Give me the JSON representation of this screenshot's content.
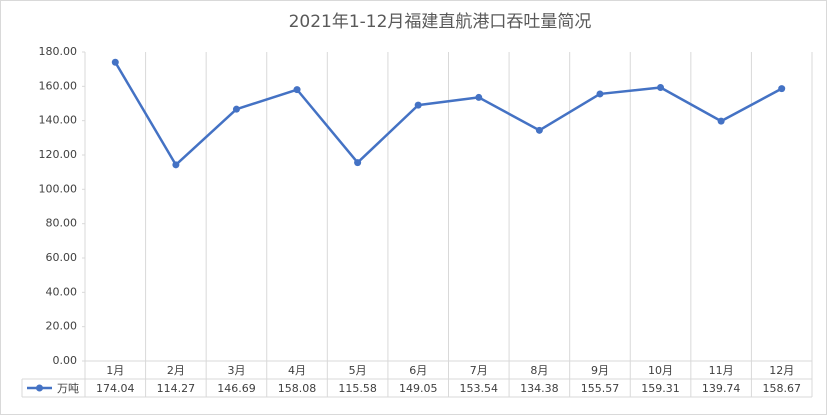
{
  "chart_data": {
    "type": "line",
    "title": "2021年1-12月福建直航港口吞吐量简况",
    "categories": [
      "1月",
      "2月",
      "3月",
      "4月",
      "5月",
      "6月",
      "7月",
      "8月",
      "9月",
      "10月",
      "11月",
      "12月"
    ],
    "series": [
      {
        "name": "万吨",
        "color": "#4472c4",
        "values": [
          174.04,
          114.27,
          146.69,
          158.08,
          115.58,
          149.05,
          153.54,
          134.38,
          155.57,
          159.31,
          139.74,
          158.67
        ]
      }
    ],
    "ylim": [
      0,
      180
    ],
    "yticks": [
      {
        "value": 0,
        "label": "0.00"
      },
      {
        "value": 20,
        "label": "20.00"
      },
      {
        "value": 40,
        "label": "40.00"
      },
      {
        "value": 60,
        "label": "60.00"
      },
      {
        "value": 80,
        "label": "80.00"
      },
      {
        "value": 100,
        "label": "100.00"
      },
      {
        "value": 120,
        "label": "120.00"
      },
      {
        "value": 140,
        "label": "140.00"
      },
      {
        "value": 160,
        "label": "160.00"
      },
      {
        "value": 180,
        "label": "180.00"
      }
    ],
    "data_table": true
  }
}
